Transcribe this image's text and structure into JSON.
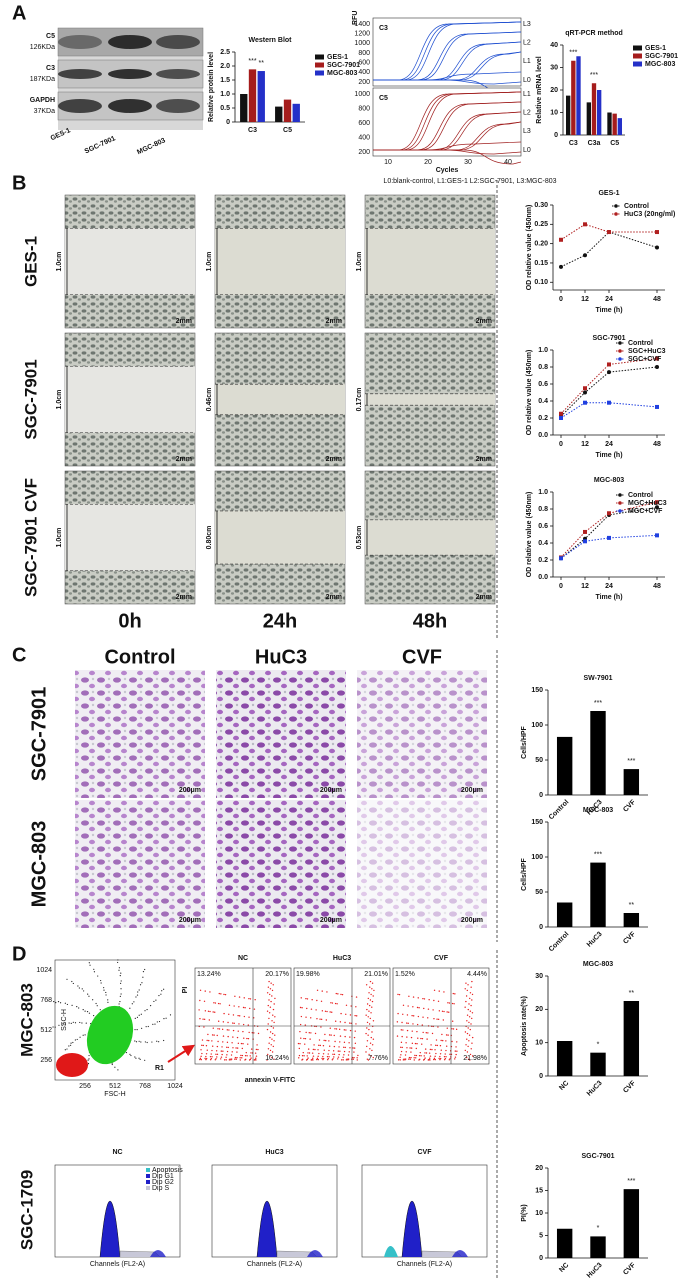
{
  "panels": {
    "a": "A",
    "b": "B",
    "c": "C",
    "d": "D"
  },
  "western_blot_image": {
    "bands": [
      "C5",
      "C3",
      "GAPDH"
    ],
    "sizes": [
      "126KDa",
      "187KDa",
      "37KDa"
    ],
    "lanes": [
      "GES-1",
      "SGC-7901",
      "MGC-803"
    ]
  },
  "qpcr_curves": {
    "y_label": "RFU",
    "x_label": "Cycles",
    "top": "C3",
    "bottom": "C5",
    "top_yticks": [
      "1400",
      "1200",
      "1000",
      "800",
      "600",
      "400",
      "200"
    ],
    "bottom_yticks": [
      "1000",
      "800",
      "600",
      "400",
      "200"
    ],
    "xticks": [
      "10",
      "20",
      "30",
      "40"
    ],
    "top_lines": [
      "L3",
      "L2",
      "L1",
      "L0"
    ],
    "bottom_lines": [
      "L1",
      "L2",
      "L3",
      "L0"
    ],
    "caption": "L0:blank-control, L1:GES-1 L2:SGC-7901, L3:MGC-803"
  },
  "migration": {
    "rows": [
      "GES-1",
      "SGC-7901",
      "SGC-7901 CVF"
    ],
    "times": [
      "0h",
      "24h",
      "48h"
    ],
    "widths": [
      [
        "1.0cm",
        "1.0cm",
        "1.0cm"
      ],
      [
        "1.0cm",
        "0.46cm",
        "0.17cm"
      ],
      [
        "1.0cm",
        "0.80cm",
        "0.53cm"
      ]
    ],
    "scale": "2mm"
  },
  "invasion": {
    "columns": [
      "Control",
      "HuC3",
      "CVF"
    ],
    "rows": [
      "SGC-7901",
      "MGC-803"
    ],
    "scale": "200μm"
  },
  "flow": {
    "cell_line": "MGC-803",
    "gate": "R1",
    "gate_xticks": [
      "256",
      "512",
      "768",
      "1024"
    ],
    "gate_yticks": [
      "1024",
      "768",
      "512",
      "256"
    ],
    "gate_xlabel": "FSC-H",
    "gate_ylabel": "SSC-H",
    "groups": [
      "NC",
      "HuC3",
      "CVF"
    ],
    "y_label": "PI",
    "x_label": "annexin V-FITC",
    "quadrants": [
      [
        "13.24%",
        "20.17%",
        "10.24%"
      ],
      [
        "19.98%",
        "21.01%",
        "7.76%"
      ],
      [
        "1.52%",
        "4.44%",
        "21.98%"
      ]
    ]
  },
  "cycle": {
    "cell_line": "SGC-1709",
    "groups": [
      "NC",
      "HuC3",
      "CVF"
    ],
    "x_label": "Channels (FL2-A)",
    "legend": [
      "Apoptosis",
      "Dip G1",
      "Dip G2",
      "Dip S"
    ]
  },
  "chart_data": [
    {
      "type": "bar",
      "title": "Western Blot",
      "y_label": "Relative protein level",
      "categories": [
        "C3",
        "C5"
      ],
      "ylim": [
        0,
        2.5
      ],
      "yticks": [
        0,
        {
          "value": 0.5,
          "label": "0.5"
        },
        {
          "value": 1,
          "label": "1.0"
        },
        1.5,
        {
          "value": 2,
          "label": "2.0"
        },
        2.5
      ],
      "series": [
        {
          "name": "GES-1",
          "color": "#111111",
          "values": [
            1.0,
            0.55
          ]
        },
        {
          "name": "SGC-7901",
          "color": "#a51c1c",
          "values": [
            1.88,
            0.8
          ],
          "significance": [
            "***",
            null
          ]
        },
        {
          "name": "MGC-803",
          "color": "#2430c8",
          "values": [
            1.82,
            0.65
          ],
          "significance": [
            "**",
            null
          ]
        }
      ]
    },
    {
      "type": "bar",
      "title": "qRT-PCR method",
      "y_label": "Relative mRNA level",
      "categories": [
        "C3",
        "C3a",
        "C5"
      ],
      "ylim": [
        0,
        40
      ],
      "yticks": [
        0,
        10,
        20,
        30,
        40
      ],
      "series": [
        {
          "name": "GES-1",
          "color": "#111111",
          "values": [
            17.5,
            14.5,
            10
          ]
        },
        {
          "name": "SGC-7901",
          "color": "#a51c1c",
          "values": [
            33,
            23,
            9.5
          ],
          "significance": [
            "***",
            "***",
            null
          ]
        },
        {
          "name": "MGC-803",
          "color": "#2430c8",
          "values": [
            35,
            20,
            7.5
          ]
        }
      ]
    },
    {
      "type": "line",
      "title": "GES-1",
      "y_label": "OD relative value (450nm)",
      "x_label": "Time (h)",
      "x": [
        0,
        12,
        24,
        48
      ],
      "xlim": [
        -4,
        52
      ],
      "xticks": [
        0,
        12,
        24,
        48
      ],
      "ylim": [
        0.08,
        0.3
      ],
      "yticks": [
        {
          "value": 0.1,
          "label": "0.10"
        },
        0.15,
        {
          "value": 0.2,
          "label": "0.20"
        },
        0.25,
        {
          "value": 0.3,
          "label": "0.30"
        }
      ],
      "series": [
        {
          "name": "Control",
          "color": "#111111",
          "values": [
            0.14,
            0.17,
            0.23,
            0.19
          ]
        },
        {
          "name": "HuC3 (20ng/ml)",
          "color": "#b02020",
          "values": [
            0.21,
            0.25,
            0.23,
            0.23
          ]
        }
      ]
    },
    {
      "type": "line",
      "title": "SGC-7901",
      "y_label": "OD relative value (450nm)",
      "x_label": "Time (h)",
      "x": [
        0,
        12,
        24,
        48
      ],
      "xlim": [
        -4,
        52
      ],
      "xticks": [
        0,
        12,
        24,
        48
      ],
      "ylim": [
        0,
        1
      ],
      "yticks": [
        {
          "value": 0,
          "label": "0.0"
        },
        0.2,
        0.4,
        0.6,
        0.8,
        {
          "value": 1,
          "label": "1.0"
        }
      ],
      "series": [
        {
          "name": "Control",
          "color": "#111111",
          "values": [
            0.22,
            0.5,
            0.74,
            0.8
          ]
        },
        {
          "name": "SGC+HuC3",
          "color": "#b02020",
          "values": [
            0.25,
            0.55,
            0.83,
            0.9
          ]
        },
        {
          "name": "SGC+CVF",
          "color": "#2040e0",
          "values": [
            0.2,
            0.38,
            0.38,
            0.33
          ]
        }
      ]
    },
    {
      "type": "line",
      "title": "MGC-803",
      "y_label": "OD relative value (450nm)",
      "x_label": "Time (h)",
      "x": [
        0,
        12,
        24,
        48
      ],
      "xlim": [
        -4,
        52
      ],
      "xticks": [
        0,
        12,
        24,
        48
      ],
      "ylim": [
        0,
        1
      ],
      "yticks": [
        {
          "value": 0,
          "label": "0.0"
        },
        0.2,
        0.4,
        0.6,
        0.8,
        {
          "value": 1,
          "label": "1.0"
        }
      ],
      "series": [
        {
          "name": "Control",
          "color": "#111111",
          "values": [
            0.22,
            0.45,
            0.73,
            0.82
          ]
        },
        {
          "name": "MGC+HuC3",
          "color": "#b02020",
          "values": [
            0.23,
            0.53,
            0.75,
            0.88
          ]
        },
        {
          "name": "MGC+CVF",
          "color": "#2040e0",
          "values": [
            0.22,
            0.42,
            0.46,
            0.49
          ]
        }
      ]
    },
    {
      "type": "bar",
      "title": "SW-7901",
      "y_label": "Cells/HPF",
      "categories": [
        "Control",
        "HuC3",
        "CVF"
      ],
      "ylim": [
        0,
        150
      ],
      "yticks": [
        0,
        50,
        100,
        150
      ],
      "series": [
        {
          "color": "#000000",
          "values": [
            83,
            120,
            37
          ],
          "significance": [
            null,
            "***",
            "***"
          ]
        }
      ]
    },
    {
      "type": "bar",
      "title": "MGC-803",
      "y_label": "Cells/HPF",
      "categories": [
        "Control",
        "HuC3",
        "CVF"
      ],
      "ylim": [
        0,
        150
      ],
      "yticks": [
        0,
        50,
        100,
        150
      ],
      "series": [
        {
          "color": "#000000",
          "values": [
            35,
            92,
            20
          ],
          "significance": [
            null,
            "***",
            "**"
          ]
        }
      ]
    },
    {
      "type": "bar",
      "title": "MGC-803",
      "y_label": "Apoptosis rate(%)",
      "categories": [
        "NC",
        "HuC3",
        "CVF"
      ],
      "ylim": [
        0,
        30
      ],
      "yticks": [
        0,
        10,
        20,
        30
      ],
      "series": [
        {
          "color": "#000000",
          "values": [
            10.5,
            7,
            22.5
          ],
          "significance": [
            null,
            "*",
            "**"
          ]
        }
      ]
    },
    {
      "type": "bar",
      "title": "SGC-7901",
      "y_label": "PI(%)",
      "categories": [
        "NC",
        "HuC3",
        "CVF"
      ],
      "ylim": [
        0,
        20
      ],
      "yticks": [
        0,
        5,
        10,
        15,
        20
      ],
      "series": [
        {
          "color": "#000000",
          "values": [
            6.5,
            4.8,
            15.3
          ],
          "significance": [
            null,
            "*",
            "***"
          ]
        }
      ]
    }
  ]
}
